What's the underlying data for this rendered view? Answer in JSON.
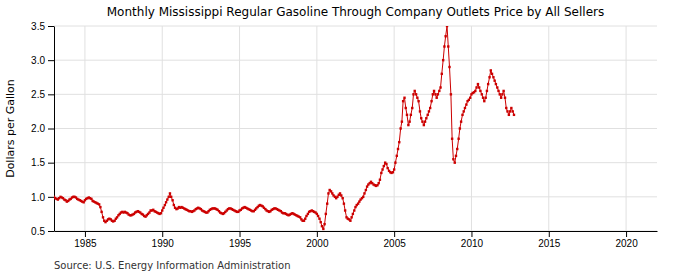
{
  "chart_data": {
    "type": "line",
    "title": "Monthly Mississippi Regular Gasoline Through Company Outlets Price by All Sellers",
    "y_label": "Dollars per Gallon",
    "source": "Source: U.S. Energy Information Administration",
    "color": "#cc0000",
    "marker": "square",
    "grid": true,
    "xlim": [
      1983.0,
      2022.0
    ],
    "ylim": [
      0.5,
      3.5
    ],
    "xticks": [
      1985,
      1990,
      1995,
      2000,
      2005,
      2010,
      2015,
      2020
    ],
    "yticks": [
      0.5,
      {
        "value": 1.0,
        "label": "1.0"
      },
      1.5,
      {
        "value": 2.0,
        "label": "2.0"
      },
      2.5,
      {
        "value": 3.0,
        "label": "3.0"
      },
      3.5
    ],
    "x": [
      1983.0,
      1983.08,
      1983.17,
      1983.25,
      1983.33,
      1983.42,
      1983.5,
      1983.58,
      1983.67,
      1983.75,
      1983.83,
      1983.92,
      1984.0,
      1984.08,
      1984.17,
      1984.25,
      1984.33,
      1984.42,
      1984.5,
      1984.58,
      1984.67,
      1984.75,
      1984.83,
      1984.92,
      1985.0,
      1985.08,
      1985.17,
      1985.25,
      1985.33,
      1985.42,
      1985.5,
      1985.58,
      1985.67,
      1985.75,
      1985.83,
      1985.92,
      1986.0,
      1986.08,
      1986.17,
      1986.25,
      1986.33,
      1986.42,
      1986.5,
      1986.58,
      1986.67,
      1986.75,
      1986.83,
      1986.92,
      1987.0,
      1987.08,
      1987.17,
      1987.25,
      1987.33,
      1987.42,
      1987.5,
      1987.58,
      1987.67,
      1987.75,
      1987.83,
      1987.92,
      1988.0,
      1988.08,
      1988.17,
      1988.25,
      1988.33,
      1988.42,
      1988.5,
      1988.58,
      1988.67,
      1988.75,
      1988.83,
      1988.92,
      1989.0,
      1989.08,
      1989.17,
      1989.25,
      1989.33,
      1989.42,
      1989.5,
      1989.58,
      1989.67,
      1989.75,
      1989.83,
      1989.92,
      1990.0,
      1990.08,
      1990.17,
      1990.25,
      1990.33,
      1990.42,
      1990.5,
      1990.58,
      1990.67,
      1990.75,
      1990.83,
      1990.92,
      1991.0,
      1991.08,
      1991.17,
      1991.25,
      1991.33,
      1991.42,
      1991.5,
      1991.58,
      1991.67,
      1991.75,
      1991.83,
      1991.92,
      1992.0,
      1992.08,
      1992.17,
      1992.25,
      1992.33,
      1992.42,
      1992.5,
      1992.58,
      1992.67,
      1992.75,
      1992.83,
      1992.92,
      1993.0,
      1993.08,
      1993.17,
      1993.25,
      1993.33,
      1993.42,
      1993.5,
      1993.58,
      1993.67,
      1993.75,
      1993.83,
      1993.92,
      1994.0,
      1994.08,
      1994.17,
      1994.25,
      1994.33,
      1994.42,
      1994.5,
      1994.58,
      1994.67,
      1994.75,
      1994.83,
      1994.92,
      1995.0,
      1995.08,
      1995.17,
      1995.25,
      1995.33,
      1995.42,
      1995.5,
      1995.58,
      1995.67,
      1995.75,
      1995.83,
      1995.92,
      1996.0,
      1996.08,
      1996.17,
      1996.25,
      1996.33,
      1996.42,
      1996.5,
      1996.58,
      1996.67,
      1996.75,
      1996.83,
      1996.92,
      1997.0,
      1997.08,
      1997.17,
      1997.25,
      1997.33,
      1997.42,
      1997.5,
      1997.58,
      1997.67,
      1997.75,
      1997.83,
      1997.92,
      1998.0,
      1998.08,
      1998.17,
      1998.25,
      1998.33,
      1998.42,
      1998.5,
      1998.58,
      1998.67,
      1998.75,
      1998.83,
      1998.92,
      1999.0,
      1999.08,
      1999.17,
      1999.25,
      1999.33,
      1999.42,
      1999.5,
      1999.58,
      1999.67,
      1999.75,
      1999.83,
      1999.92,
      2000.0,
      2000.08,
      2000.17,
      2000.25,
      2000.33,
      2000.42,
      2000.5,
      2000.58,
      2000.67,
      2000.75,
      2000.83,
      2000.92,
      2001.0,
      2001.08,
      2001.17,
      2001.25,
      2001.33,
      2001.42,
      2001.5,
      2001.58,
      2001.67,
      2001.75,
      2001.83,
      2001.92,
      2002.0,
      2002.08,
      2002.17,
      2002.25,
      2002.33,
      2002.42,
      2002.5,
      2002.58,
      2002.67,
      2002.75,
      2002.83,
      2002.92,
      2003.0,
      2003.08,
      2003.17,
      2003.25,
      2003.33,
      2003.42,
      2003.5,
      2003.58,
      2003.67,
      2003.75,
      2003.83,
      2003.92,
      2004.0,
      2004.08,
      2004.17,
      2004.25,
      2004.33,
      2004.42,
      2004.5,
      2004.58,
      2004.67,
      2004.75,
      2004.83,
      2004.92,
      2005.0,
      2005.08,
      2005.17,
      2005.25,
      2005.33,
      2005.42,
      2005.5,
      2005.58,
      2005.67,
      2005.75,
      2005.83,
      2005.92,
      2006.0,
      2006.08,
      2006.17,
      2006.25,
      2006.33,
      2006.42,
      2006.5,
      2006.58,
      2006.67,
      2006.75,
      2006.83,
      2006.92,
      2007.0,
      2007.08,
      2007.17,
      2007.25,
      2007.33,
      2007.42,
      2007.5,
      2007.58,
      2007.67,
      2007.75,
      2007.83,
      2007.92,
      2008.0,
      2008.08,
      2008.17,
      2008.25,
      2008.33,
      2008.42,
      2008.5,
      2008.58,
      2008.67,
      2008.75,
      2008.83,
      2008.92,
      2009.0,
      2009.08,
      2009.17,
      2009.25,
      2009.33,
      2009.42,
      2009.5,
      2009.58,
      2009.67,
      2009.75,
      2009.83,
      2009.92,
      2010.0,
      2010.08,
      2010.17,
      2010.25,
      2010.33,
      2010.42,
      2010.5,
      2010.58,
      2010.67,
      2010.75,
      2010.83,
      2010.92,
      2011.0,
      2011.08,
      2011.17,
      2011.25,
      2011.33,
      2011.42,
      2011.5,
      2011.58,
      2011.67,
      2011.75,
      2011.83,
      2011.92,
      2012.0,
      2012.08,
      2012.17,
      2012.25,
      2012.33,
      2012.42,
      2012.5,
      2012.58,
      2012.67,
      2012.75
    ],
    "values": [
      1.0,
      0.98,
      0.97,
      0.96,
      0.98,
      1.0,
      0.99,
      0.98,
      0.96,
      0.95,
      0.93,
      0.94,
      0.96,
      0.97,
      0.99,
      1.0,
      1.0,
      0.99,
      0.97,
      0.96,
      0.95,
      0.94,
      0.93,
      0.92,
      0.95,
      0.97,
      0.98,
      0.99,
      0.98,
      0.97,
      0.94,
      0.93,
      0.92,
      0.91,
      0.9,
      0.89,
      0.85,
      0.78,
      0.7,
      0.65,
      0.63,
      0.65,
      0.67,
      0.68,
      0.67,
      0.65,
      0.64,
      0.65,
      0.68,
      0.7,
      0.73,
      0.75,
      0.77,
      0.78,
      0.77,
      0.78,
      0.77,
      0.76,
      0.74,
      0.73,
      0.73,
      0.74,
      0.75,
      0.77,
      0.78,
      0.79,
      0.78,
      0.77,
      0.75,
      0.74,
      0.72,
      0.71,
      0.73,
      0.75,
      0.77,
      0.8,
      0.8,
      0.81,
      0.79,
      0.78,
      0.77,
      0.76,
      0.75,
      0.76,
      0.8,
      0.84,
      0.88,
      0.92,
      0.96,
      1.0,
      1.05,
      1.0,
      0.95,
      0.88,
      0.84,
      0.82,
      0.83,
      0.85,
      0.84,
      0.85,
      0.84,
      0.83,
      0.82,
      0.81,
      0.8,
      0.79,
      0.79,
      0.78,
      0.79,
      0.8,
      0.82,
      0.83,
      0.84,
      0.83,
      0.82,
      0.8,
      0.79,
      0.78,
      0.77,
      0.77,
      0.79,
      0.81,
      0.82,
      0.83,
      0.83,
      0.83,
      0.82,
      0.81,
      0.79,
      0.77,
      0.76,
      0.75,
      0.76,
      0.78,
      0.8,
      0.82,
      0.83,
      0.83,
      0.82,
      0.81,
      0.8,
      0.79,
      0.78,
      0.78,
      0.8,
      0.81,
      0.83,
      0.84,
      0.85,
      0.84,
      0.83,
      0.82,
      0.81,
      0.8,
      0.79,
      0.79,
      0.81,
      0.83,
      0.85,
      0.87,
      0.88,
      0.87,
      0.86,
      0.84,
      0.82,
      0.8,
      0.79,
      0.78,
      0.79,
      0.81,
      0.82,
      0.83,
      0.83,
      0.82,
      0.81,
      0.8,
      0.79,
      0.77,
      0.76,
      0.76,
      0.75,
      0.74,
      0.73,
      0.74,
      0.75,
      0.76,
      0.75,
      0.74,
      0.73,
      0.72,
      0.71,
      0.7,
      0.67,
      0.65,
      0.65,
      0.68,
      0.72,
      0.75,
      0.78,
      0.79,
      0.8,
      0.79,
      0.78,
      0.77,
      0.75,
      0.72,
      0.68,
      0.63,
      0.57,
      0.53,
      0.6,
      0.75,
      0.9,
      1.05,
      1.1,
      1.08,
      1.05,
      1.02,
      1.0,
      0.98,
      1.0,
      1.03,
      1.05,
      1.02,
      0.98,
      0.9,
      0.8,
      0.7,
      0.68,
      0.67,
      0.65,
      0.7,
      0.75,
      0.8,
      0.85,
      0.88,
      0.9,
      0.93,
      0.96,
      0.98,
      1.0,
      1.05,
      1.1,
      1.15,
      1.18,
      1.2,
      1.22,
      1.2,
      1.18,
      1.17,
      1.16,
      1.17,
      1.2,
      1.25,
      1.35,
      1.4,
      1.45,
      1.5,
      1.48,
      1.42,
      1.38,
      1.36,
      1.35,
      1.36,
      1.4,
      1.5,
      1.6,
      1.7,
      1.8,
      2.0,
      2.1,
      2.4,
      2.45,
      2.3,
      2.2,
      2.05,
      2.1,
      2.2,
      2.3,
      2.5,
      2.55,
      2.5,
      2.45,
      2.4,
      2.25,
      2.15,
      2.1,
      2.05,
      2.1,
      2.15,
      2.2,
      2.25,
      2.3,
      2.4,
      2.5,
      2.55,
      2.5,
      2.45,
      2.5,
      2.55,
      2.6,
      2.8,
      3.0,
      3.2,
      3.35,
      3.5,
      3.2,
      2.9,
      2.5,
      1.85,
      1.55,
      1.5,
      1.6,
      1.7,
      1.85,
      2.0,
      2.1,
      2.2,
      2.25,
      2.3,
      2.35,
      2.4,
      2.42,
      2.45,
      2.5,
      2.52,
      2.53,
      2.55,
      2.6,
      2.65,
      2.6,
      2.55,
      2.5,
      2.45,
      2.4,
      2.45,
      2.55,
      2.65,
      2.75,
      2.85,
      2.8,
      2.75,
      2.7,
      2.65,
      2.6,
      2.55,
      2.5,
      2.45,
      2.5,
      2.55,
      2.45,
      2.3,
      2.25,
      2.2,
      2.25,
      2.3,
      2.25,
      2.2
    ]
  }
}
